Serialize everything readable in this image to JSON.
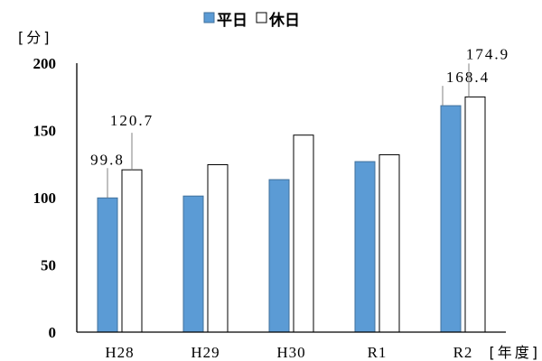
{
  "chart_data": {
    "type": "bar",
    "title": "",
    "categories": [
      "H28",
      "H29",
      "H30",
      "R1",
      "R2"
    ],
    "series": [
      {
        "name": "平日",
        "values": [
          99.8,
          101.2,
          113.4,
          126.8,
          168.4
        ],
        "labels": [
          "99.8",
          null,
          null,
          null,
          "168.4"
        ],
        "color": "#5b9bd5",
        "stroke": "#41719c"
      },
      {
        "name": "休日",
        "values": [
          120.7,
          124.5,
          146.5,
          131.9,
          174.9
        ],
        "labels": [
          "120.7",
          null,
          null,
          null,
          "174.9"
        ],
        "color": "#ffffff",
        "stroke": "#000000"
      }
    ],
    "xlabel": "[年度]",
    "ylabel": "[分]",
    "ylim": [
      0,
      200
    ],
    "yticks": [
      0,
      50,
      100,
      150,
      200
    ],
    "grid": false,
    "legend": "top"
  }
}
